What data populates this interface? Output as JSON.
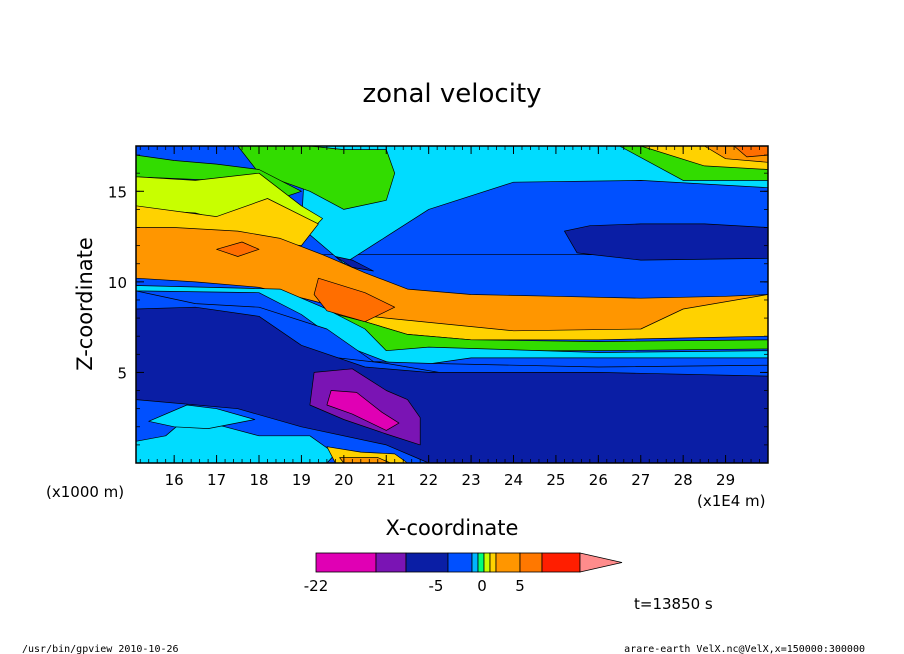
{
  "chart_data": {
    "type": "heatmap",
    "title": "zonal velocity",
    "xlabel": "X-coordinate",
    "ylabel": "Z-coordinate",
    "x_unit_left": "(x1000 m)",
    "x_unit_right": "(x1E4 m)",
    "xlim": [
      15.1,
      30.0
    ],
    "ylim": [
      0,
      17.5
    ],
    "x_ticks": [
      "16",
      "17",
      "18",
      "19",
      "20",
      "21",
      "22",
      "23",
      "24",
      "25",
      "26",
      "27",
      "28",
      "29"
    ],
    "y_ticks": [
      "5",
      "10",
      "15"
    ],
    "colorbar": {
      "labels": [
        "-22",
        "-5",
        "0",
        "5"
      ],
      "colors": [
        "#e000b4",
        "#7a14b4",
        "#0a1ea5",
        "#0050ff",
        "#00b4ff",
        "#00ff78",
        "#c8ff00",
        "#ffd200",
        "#ff9600",
        "#ff7800",
        "#ff1e00",
        "#ff8c8c"
      ]
    },
    "regions": [
      {
        "level": "blue",
        "color": "#0050ff",
        "points": [
          [
            15.1,
            11.5
          ],
          [
            30,
            11.5
          ],
          [
            30,
            15.6
          ],
          [
            15.1,
            15.6
          ]
        ]
      },
      {
        "level": "cyan",
        "color": "#00dcff",
        "points": [
          [
            19.1,
            17.5
          ],
          [
            30,
            17.5
          ],
          [
            30,
            15.2
          ],
          [
            27,
            15.6
          ],
          [
            24,
            15.5
          ],
          [
            22,
            14
          ],
          [
            21,
            12.5
          ],
          [
            20,
            11
          ],
          [
            19,
            13
          ]
        ]
      },
      {
        "level": "green",
        "color": "#32dc00",
        "points": [
          [
            26.5,
            17.5
          ],
          [
            30,
            17.5
          ],
          [
            30,
            15.6
          ],
          [
            28,
            15.6
          ]
        ]
      },
      {
        "level": "yellow",
        "color": "#ffd200",
        "points": [
          [
            27,
            17.5
          ],
          [
            30,
            17.5
          ],
          [
            30,
            16.2
          ],
          [
            28.5,
            16.4
          ]
        ]
      },
      {
        "level": "orange",
        "color": "#ff9600",
        "points": [
          [
            28.5,
            17.5
          ],
          [
            30,
            17.5
          ],
          [
            30,
            16.6
          ],
          [
            29,
            16.8
          ]
        ]
      },
      {
        "level": "red-orange",
        "color": "#ff6e00",
        "points": [
          [
            29.2,
            17.5
          ],
          [
            30,
            17.5
          ],
          [
            30,
            17
          ],
          [
            29.5,
            16.9
          ]
        ]
      },
      {
        "level": "navy",
        "color": "#0a1ea5",
        "points": [
          [
            25.2,
            12.8
          ],
          [
            25.8,
            13.1
          ],
          [
            27,
            13.2
          ],
          [
            28.5,
            13.2
          ],
          [
            30,
            13
          ],
          [
            30,
            11.3
          ],
          [
            27,
            11.2
          ],
          [
            25.5,
            11.6
          ]
        ]
      },
      {
        "level": "green",
        "color": "#32dc00",
        "points": [
          [
            19.2,
            17.5
          ],
          [
            20,
            17.3
          ],
          [
            21,
            17.3
          ],
          [
            21.2,
            16
          ],
          [
            21,
            14.5
          ],
          [
            20,
            14
          ],
          [
            19.2,
            15
          ],
          [
            18,
            16
          ],
          [
            17.5,
            17.5
          ]
        ]
      },
      {
        "level": "green",
        "color": "#32dc00",
        "points": [
          [
            15.1,
            17
          ],
          [
            16,
            16.7
          ],
          [
            17,
            16.5
          ],
          [
            18,
            16.2
          ],
          [
            19,
            15
          ],
          [
            18.5,
            14.6
          ],
          [
            17,
            15.6
          ],
          [
            15.1,
            15.8
          ]
        ]
      },
      {
        "level": "yellow",
        "color": "#c8ff00",
        "points": [
          [
            15.1,
            15.8
          ],
          [
            16.5,
            15.6
          ],
          [
            18,
            16
          ],
          [
            19,
            14.2
          ],
          [
            19.5,
            13.5
          ],
          [
            19,
            12.3
          ],
          [
            18,
            12.8
          ],
          [
            16.5,
            13.8
          ],
          [
            15.1,
            14
          ]
        ]
      },
      {
        "level": "yellow",
        "color": "#ffd200",
        "points": [
          [
            15.1,
            14.2
          ],
          [
            17,
            13.6
          ],
          [
            18.2,
            14.6
          ],
          [
            19.4,
            13.2
          ],
          [
            19,
            12
          ],
          [
            17,
            12.5
          ],
          [
            15.1,
            12.6
          ]
        ]
      },
      {
        "level": "orange",
        "color": "#ff9600",
        "points": [
          [
            15.1,
            13
          ],
          [
            16,
            13
          ],
          [
            17.5,
            12.8
          ],
          [
            18.5,
            12.4
          ],
          [
            19.5,
            11.5
          ],
          [
            20.5,
            10.5
          ],
          [
            21.5,
            9.6
          ],
          [
            23,
            9.3
          ],
          [
            25,
            9.2
          ],
          [
            27,
            9.1
          ],
          [
            29,
            9.2
          ],
          [
            30,
            9.3
          ],
          [
            30,
            7.2
          ],
          [
            28,
            7.1
          ],
          [
            26,
            7
          ],
          [
            24,
            7.1
          ],
          [
            22.5,
            7.2
          ],
          [
            21.5,
            7.6
          ],
          [
            20.5,
            8.2
          ],
          [
            19.2,
            9
          ],
          [
            18,
            9.7
          ],
          [
            16.5,
            10
          ],
          [
            15.1,
            10.2
          ]
        ]
      },
      {
        "level": "yellow",
        "color": "#ffd200",
        "points": [
          [
            28,
            8.5
          ],
          [
            30,
            9.3
          ],
          [
            30,
            7
          ],
          [
            28,
            6.9
          ],
          [
            26,
            6.8
          ],
          [
            23,
            6.8
          ],
          [
            21.5,
            7.1
          ],
          [
            20.5,
            7.8
          ],
          [
            19.5,
            8.4
          ],
          [
            21,
            8
          ],
          [
            24,
            7.3
          ],
          [
            27,
            7.4
          ]
        ]
      },
      {
        "level": "green",
        "color": "#32dc00",
        "points": [
          [
            19.5,
            8.4
          ],
          [
            20.5,
            7.8
          ],
          [
            21.5,
            7.1
          ],
          [
            23,
            6.8
          ],
          [
            26,
            6.7
          ],
          [
            30,
            6.8
          ],
          [
            30,
            6.3
          ],
          [
            26,
            6.2
          ],
          [
            23,
            6.2
          ],
          [
            21.8,
            6.3
          ],
          [
            21,
            6
          ],
          [
            20.5,
            7
          ]
        ]
      },
      {
        "level": "cyan",
        "color": "#00dcff",
        "points": [
          [
            15.1,
            9.8
          ],
          [
            18.5,
            9.6
          ],
          [
            19.5,
            8.6
          ],
          [
            20.5,
            7.4
          ],
          [
            21,
            6.2
          ],
          [
            22,
            6.4
          ],
          [
            26,
            6.1
          ],
          [
            30,
            6.2
          ],
          [
            30,
            5.8
          ],
          [
            26,
            5.8
          ],
          [
            23,
            5.8
          ],
          [
            21.5,
            5.3
          ],
          [
            21,
            5.6
          ],
          [
            20,
            6.5
          ],
          [
            19,
            8.2
          ],
          [
            18,
            9.4
          ],
          [
            15.1,
            9.5
          ]
        ]
      },
      {
        "level": "red-orange",
        "color": "#ff6e00",
        "points": [
          [
            19.4,
            10.2
          ],
          [
            20.5,
            9.4
          ],
          [
            21.2,
            8.6
          ],
          [
            20.5,
            7.8
          ],
          [
            19.6,
            8.4
          ],
          [
            19.3,
            9.3
          ]
        ]
      },
      {
        "level": "red-orange",
        "color": "#ff6e00",
        "points": [
          [
            17,
            11.8
          ],
          [
            17.6,
            12.2
          ],
          [
            18,
            11.8
          ],
          [
            17.5,
            11.4
          ]
        ]
      },
      {
        "level": "navy",
        "color": "#0a1ea5",
        "points": [
          [
            19.8,
            11.4
          ],
          [
            20.2,
            11.2
          ],
          [
            20.7,
            10.6
          ],
          [
            20.2,
            10.8
          ]
        ]
      },
      {
        "level": "blue",
        "color": "#0050ff",
        "points": [
          [
            15.1,
            9.5
          ],
          [
            16.5,
            8.8
          ],
          [
            18,
            8.6
          ],
          [
            19.6,
            7.4
          ],
          [
            20.7,
            5.6
          ],
          [
            22,
            5.5
          ],
          [
            26,
            5.3
          ],
          [
            30,
            5.4
          ],
          [
            30,
            4.3
          ],
          [
            26,
            4.4
          ],
          [
            23,
            4.7
          ],
          [
            21,
            5.5
          ],
          [
            19.5,
            5.9
          ],
          [
            18,
            5.4
          ],
          [
            16.5,
            6
          ],
          [
            15.1,
            6.5
          ]
        ]
      },
      {
        "level": "navy",
        "color": "#0a1ea5",
        "points": [
          [
            15.1,
            8.5
          ],
          [
            16.5,
            8.6
          ],
          [
            18,
            8.1
          ],
          [
            19,
            6.5
          ],
          [
            20.5,
            5.3
          ],
          [
            22,
            5
          ],
          [
            26,
            5
          ],
          [
            30,
            4.8
          ],
          [
            30,
            0
          ],
          [
            22,
            0
          ],
          [
            21,
            1
          ],
          [
            19,
            2
          ],
          [
            17.5,
            3
          ],
          [
            15.1,
            3.5
          ]
        ]
      },
      {
        "level": "cyan",
        "color": "#00dcff",
        "points": [
          [
            15.1,
            1.2
          ],
          [
            15.8,
            1.5
          ],
          [
            16.3,
            2.5
          ],
          [
            17.2,
            2
          ],
          [
            18,
            1.5
          ],
          [
            19.2,
            1.5
          ],
          [
            19.8,
            0.5
          ],
          [
            19.6,
            0
          ],
          [
            15.1,
            0
          ]
        ]
      },
      {
        "level": "cyan",
        "color": "#00dcff",
        "points": [
          [
            15.4,
            2.3
          ],
          [
            16.3,
            3.2
          ],
          [
            17,
            3
          ],
          [
            17.9,
            2.4
          ],
          [
            16.8,
            1.9
          ],
          [
            16,
            2
          ]
        ]
      },
      {
        "level": "purple",
        "color": "#7a14b4",
        "points": [
          [
            19.3,
            5
          ],
          [
            20.2,
            5.2
          ],
          [
            21,
            4
          ],
          [
            21.5,
            3.5
          ],
          [
            21.8,
            2.5
          ],
          [
            21.8,
            1
          ],
          [
            21,
            1.6
          ],
          [
            20,
            2.4
          ],
          [
            19.2,
            3.2
          ]
        ]
      },
      {
        "level": "magenta",
        "color": "#e000b4",
        "points": [
          [
            19.7,
            4
          ],
          [
            20.3,
            3.9
          ],
          [
            20.9,
            2.8
          ],
          [
            21.3,
            2.2
          ],
          [
            21,
            1.8
          ],
          [
            20.2,
            2.7
          ],
          [
            19.6,
            3.2
          ]
        ]
      },
      {
        "level": "yellow",
        "color": "#ffd200",
        "points": [
          [
            19.6,
            0.9
          ],
          [
            20.4,
            0.6
          ],
          [
            21.2,
            0.5
          ],
          [
            21.5,
            0
          ],
          [
            19.8,
            0
          ]
        ]
      },
      {
        "level": "orange",
        "color": "#ff9600",
        "points": [
          [
            19.9,
            0.3
          ],
          [
            20.8,
            0.3
          ],
          [
            21.1,
            0
          ],
          [
            20,
            0
          ]
        ]
      }
    ]
  },
  "footer": {
    "time_label": "t=13850 s",
    "program": "/usr/bin/gpview   2010-10-26",
    "source": "arare-earth_VelX.nc@VelX,x=150000:300000"
  }
}
